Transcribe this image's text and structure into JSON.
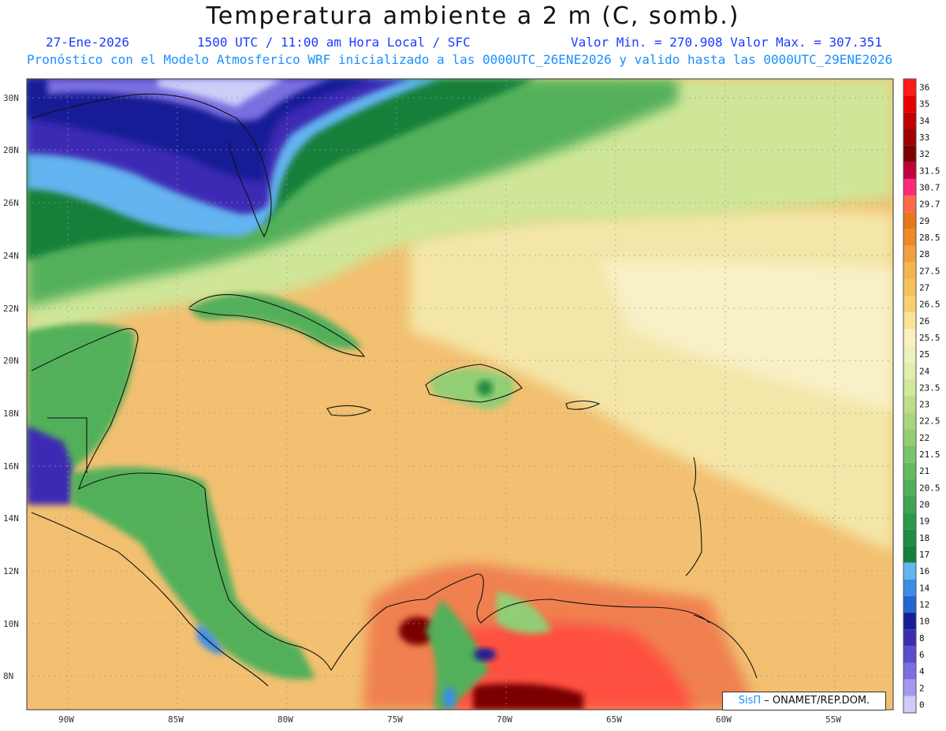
{
  "header": {
    "title": "Temperatura ambiente a 2 m (C, somb.)",
    "date": "27-Ene-2026",
    "time": "1500 UTC / 11:00 am Hora Local / SFC",
    "minmax": "Valor Min. = 270.908  Valor Max. = 307.351",
    "model_line": "Pronóstico con el Modelo Atmosferico WRF inicializado a las 0000UTC_26ENE2026 y valido hasta las  0000UTC_29ENE2026"
  },
  "axes": {
    "lat_labels": [
      "30N",
      "28N",
      "26N",
      "24N",
      "22N",
      "20N",
      "18N",
      "16N",
      "14N",
      "12N",
      "10N",
      "8N"
    ],
    "lon_labels": [
      "90W",
      "85W",
      "80W",
      "75W",
      "70W",
      "65W",
      "60W",
      "55W"
    ]
  },
  "colorbar": {
    "labels": [
      "36",
      "35",
      "34",
      "33",
      "32",
      "31.5",
      "30.7",
      "29.7",
      "29",
      "28.5",
      "28",
      "27.5",
      "27",
      "26.5",
      "26",
      "25.5",
      "25",
      "24",
      "23.5",
      "23",
      "22.5",
      "22",
      "21.5",
      "21",
      "20.5",
      "20",
      "19",
      "18",
      "17",
      "16",
      "14",
      "12",
      "10",
      "8",
      "6",
      "4",
      "2",
      "0"
    ],
    "colors": [
      "#ff1a1a",
      "#e60000",
      "#c20000",
      "#a00000",
      "#7a0000",
      "#c0003a",
      "#ff2a7a",
      "#ff6a4a",
      "#e8771a",
      "#ee8a22",
      "#f0a040",
      "#f4b44e",
      "#f6c25c",
      "#f8d070",
      "#fae496",
      "#faf0c0",
      "#eef0c0",
      "#e2eeac",
      "#d0e89a",
      "#bede8a",
      "#a8d680",
      "#92ce74",
      "#7cc46a",
      "#66ba62",
      "#52b05a",
      "#40a452",
      "#2e984a",
      "#208c42",
      "#14803a",
      "#64b4f0",
      "#3c8ce6",
      "#2464d2",
      "#141e96",
      "#3c2cb4",
      "#5a4ccc",
      "#7a6ee0",
      "#a498f0",
      "#cccdf8"
    ]
  },
  "credit": {
    "logo": "SisΠ",
    "text": " – ONAMET/REP.DOM."
  }
}
